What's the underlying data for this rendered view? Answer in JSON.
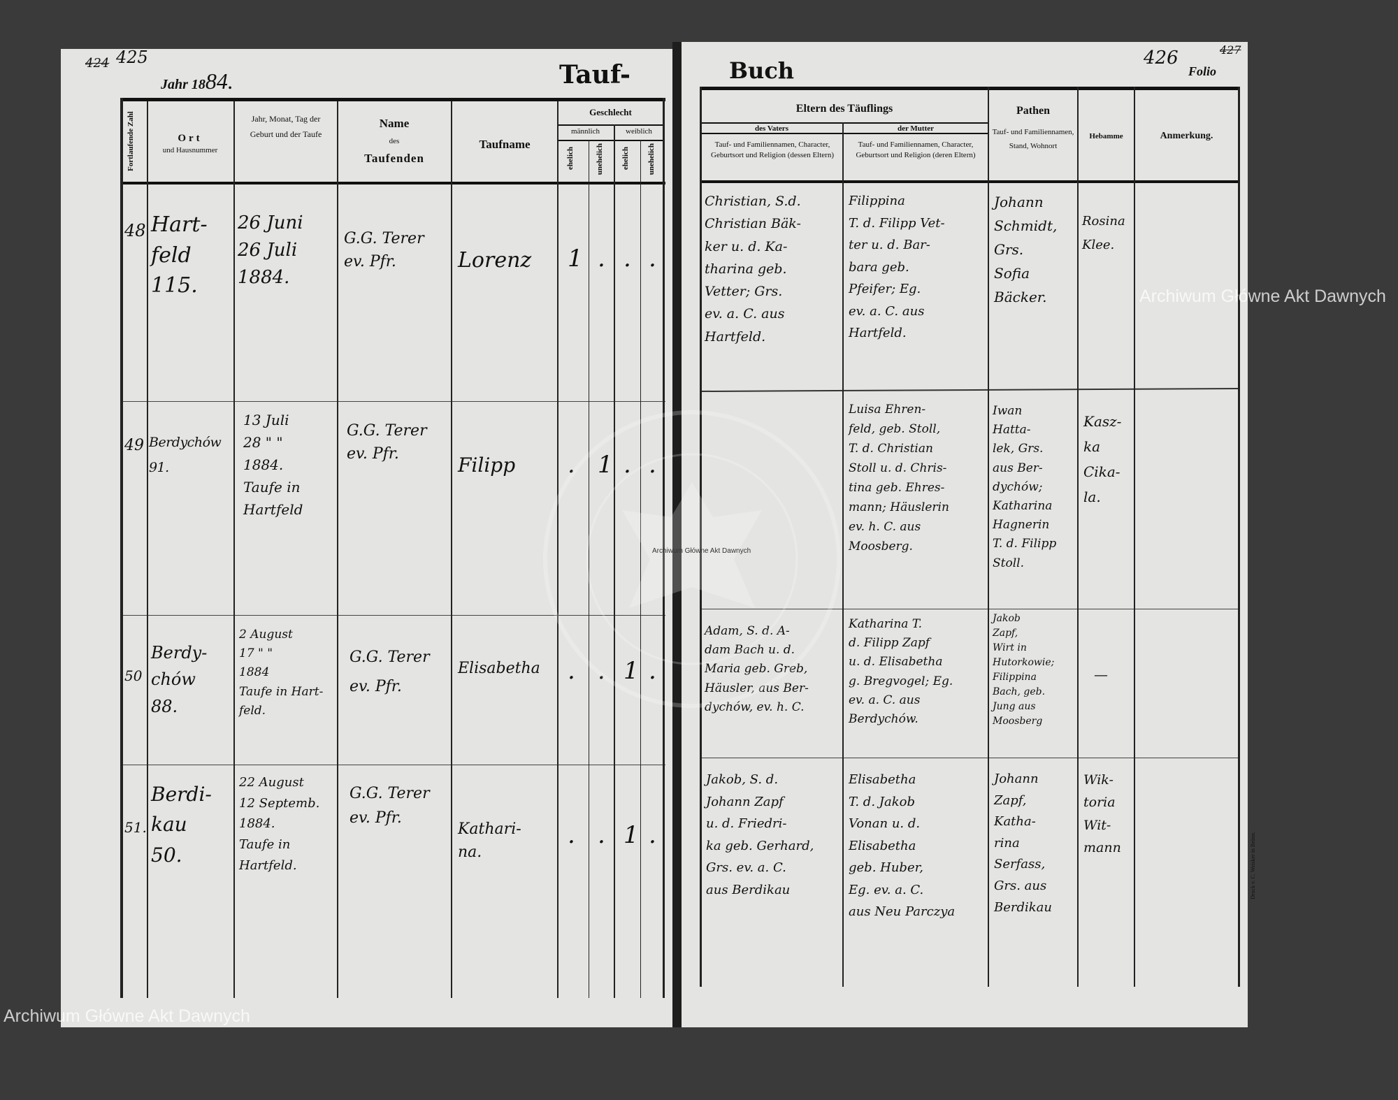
{
  "left_page": {
    "folio_old": "424",
    "folio": "425",
    "year_label": "Jahr 18",
    "year_hand": "84.",
    "title_part": "Tauf-",
    "headers": {
      "nr": "Fortlaufende Zahl",
      "ort": "Ort",
      "ort_sub": "und Hausnummer",
      "datum": "Jahr, Monat, Tag der Geburt und der Taufe",
      "name": "Name",
      "name_des": "des",
      "name_sub": "Taufenden",
      "taufname": "Taufname",
      "geschlecht": "Geschlecht",
      "maennlich": "männlich",
      "weiblich": "weiblich",
      "ehelich": "ehelich",
      "unehelich": "unehelich"
    },
    "rows": [
      {
        "nr": "48",
        "ort": "Hart-\nfeld\n115.",
        "datum": "26 Juni\n26 Juli\n1884.",
        "pfarrer": "G.G. Terer\nev. Pfr.",
        "taufname": "Lorenz",
        "marks": [
          "1",
          ".",
          ".",
          "."
        ]
      },
      {
        "nr": "49",
        "ort": "Berdychów\n91.",
        "datum": "13 Juli\n28 \" \"\n1884.\nTaufe in\nHartfeld",
        "pfarrer": "G.G. Terer\nev. Pfr.",
        "taufname": "Filipp",
        "marks": [
          ".",
          "1",
          ".",
          "."
        ]
      },
      {
        "nr": "50",
        "ort": "Berdy-\nchów\n88.",
        "datum": "2 August\n17 \" \"\n1884\nTaufe in Hart-\nfeld.",
        "pfarrer": "G.G. Terer\nev. Pfr.",
        "taufname": "Elisabetha",
        "marks": [
          ".",
          ".",
          "1",
          "."
        ]
      },
      {
        "nr": "51.",
        "ort": "Berdi-\nkau\n50.",
        "datum": "22 August\n12 Septemb.\n1884.\nTaufe in\nHartfeld.",
        "pfarrer": "G.G. Terer\nev. Pfr.",
        "taufname": "Kathari-\nna.",
        "marks": [
          ".",
          ".",
          "1",
          "."
        ]
      }
    ]
  },
  "right_page": {
    "folio": "426",
    "folio_old": "427",
    "title_part": "Buch",
    "folio_label": "Folio",
    "headers": {
      "eltern": "Eltern des Täuflings",
      "vater": "des Vaters",
      "mutter": "der Mutter",
      "vater_sub": "Tauf- und Familiennamen, Character, Geburtsort und Religion (dessen Eltern)",
      "mutter_sub": "Tauf- und Familiennamen, Character, Geburtsort und Religion (deren Eltern)",
      "pathen": "Pathen",
      "pathen_sub": "Tauf- und Familiennamen, Stand, Wohnort",
      "hebamme": "Hebamme",
      "anmerkung": "Anmerkung."
    },
    "rows": [
      {
        "vater": "Christian, S.d.\nChristian Bäk-\nker u. d. Ka-\ntharina geb.\nVetter; Grs.\nev. a. C. aus\nHartfeld.",
        "mutter": "Filippina\nT. d. Filipp Vet-\nter u. d. Bar-\nbara geb.\nPfeifer; Eg.\nev. a. C. aus\nHartfeld.",
        "pathen": "Johann\nSchmidt,\nGrs.\nSofia\nBäcker.",
        "hebamme": "Rosina\nKlee."
      },
      {
        "vater": "",
        "mutter": "Luisa Ehren-\nfeld, geb. Stoll,\nT. d. Christian\nStoll u. d. Chris-\ntina geb. Ehres-\nmann; Häuslerin\nev. h. C. aus\nMoosberg.",
        "pathen": "Iwan\nHatta-\nlek, Grs.\naus Ber-\ndychów;\nKatharina\nHagnerin\nT. d. Filipp\nStoll.",
        "hebamme": "Kasz-\nka\nCika-\nla."
      },
      {
        "vater": "Adam, S. d. A-\ndam Bach u. d.\nMaria geb. Greb,\nHäusler, aus Ber-\ndychów, ev. h. C.",
        "mutter": "Katharina T.\nd. Filipp Zapf\nu. d. Elisabetha\ng. Bregvogel; Eg.\nev. a. C. aus\nBerdychów.",
        "pathen": "Jakob\nZapf,\nWirt in\nHutorkowie;\nFilippina\nBach, geb.\nJung aus\nMoosberg",
        "hebamme": "—"
      },
      {
        "vater": "Jakob, S. d.\nJohann Zapf\nu. d. Friedri-\nka geb. Gerhard,\nGrs. ev. a. C.\naus Berdikau",
        "mutter": "Elisabetha\nT. d. Jakob\nVonan u. d.\nElisabetha\ngeb. Huber,\nEg. ev. a. C.\naus Neu Parczya",
        "pathen": "Johann\nZapf,\nKatha-\nrina\nSerfass,\nGrs. aus\nBerdikau",
        "hebamme": "Wik-\ntoria\nWit-\nmann"
      }
    ],
    "printer": "Druck v. C. Weisker in Brünn."
  },
  "watermarks": [
    "Archiwum Główne Akt Dawnych",
    "Archiwum Główne Akt Dawnych",
    "Archiwum Główne Akt Dawnych"
  ],
  "stamp_text": "ARCHIWUM GŁÓWNE AKT DAWNYCH"
}
